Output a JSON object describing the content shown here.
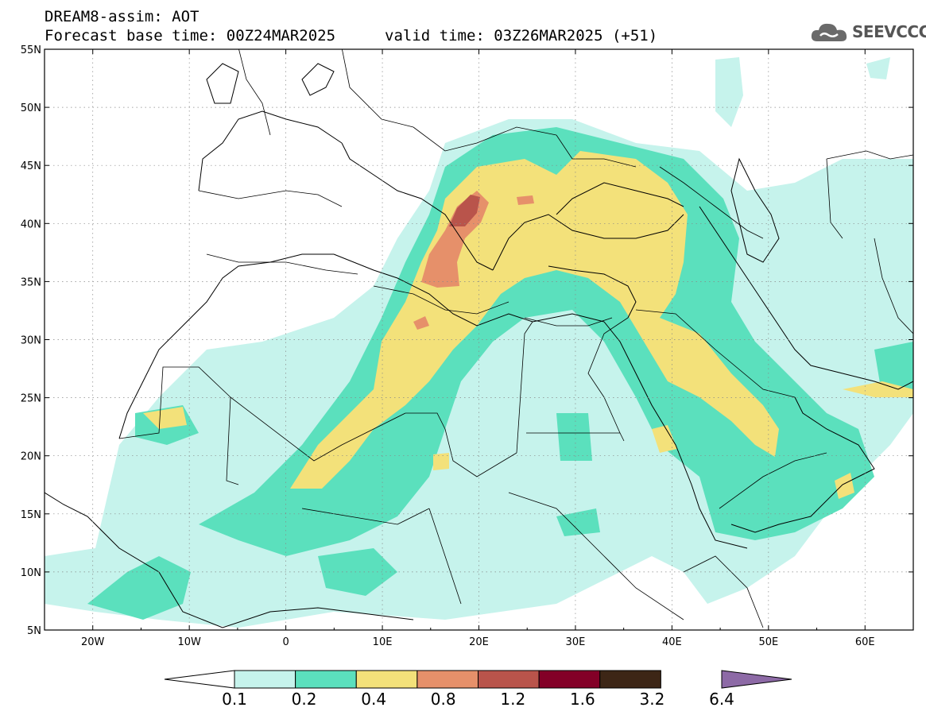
{
  "title": {
    "line1": "DREAM8-assim: AOT",
    "line2": "Forecast base time: 00Z24MAR2025",
    "valid": "valid time: 03Z26MAR2025 (+51)"
  },
  "logo": {
    "text": "SEEVCCC",
    "icon": "cloud-logo-icon"
  },
  "map": {
    "variable": "AOT",
    "lon_range": [
      -25,
      65
    ],
    "lat_range": [
      5,
      55
    ],
    "lat_ticks": [
      "55N",
      "50N",
      "45N",
      "40N",
      "35N",
      "30N",
      "25N",
      "20N",
      "15N",
      "10N",
      "5N"
    ],
    "lon_ticks": [
      "20W",
      "10W",
      "0",
      "10E",
      "20E",
      "30E",
      "40E",
      "50E",
      "60E"
    ],
    "grid": true,
    "gridline_style": "dotted"
  },
  "colorbar": {
    "levels": [
      "0.1",
      "0.2",
      "0.4",
      "0.8",
      "1.2",
      "1.6",
      "3.2",
      "6.4"
    ],
    "colors": [
      "#c6f3ec",
      "#5be0bd",
      "#f3e17a",
      "#e6906a",
      "#b9544b",
      "#830027",
      "#3d2616",
      "#8d6aa6"
    ],
    "under_color": "#ffffff",
    "over_color": "#8d6aa6"
  }
}
